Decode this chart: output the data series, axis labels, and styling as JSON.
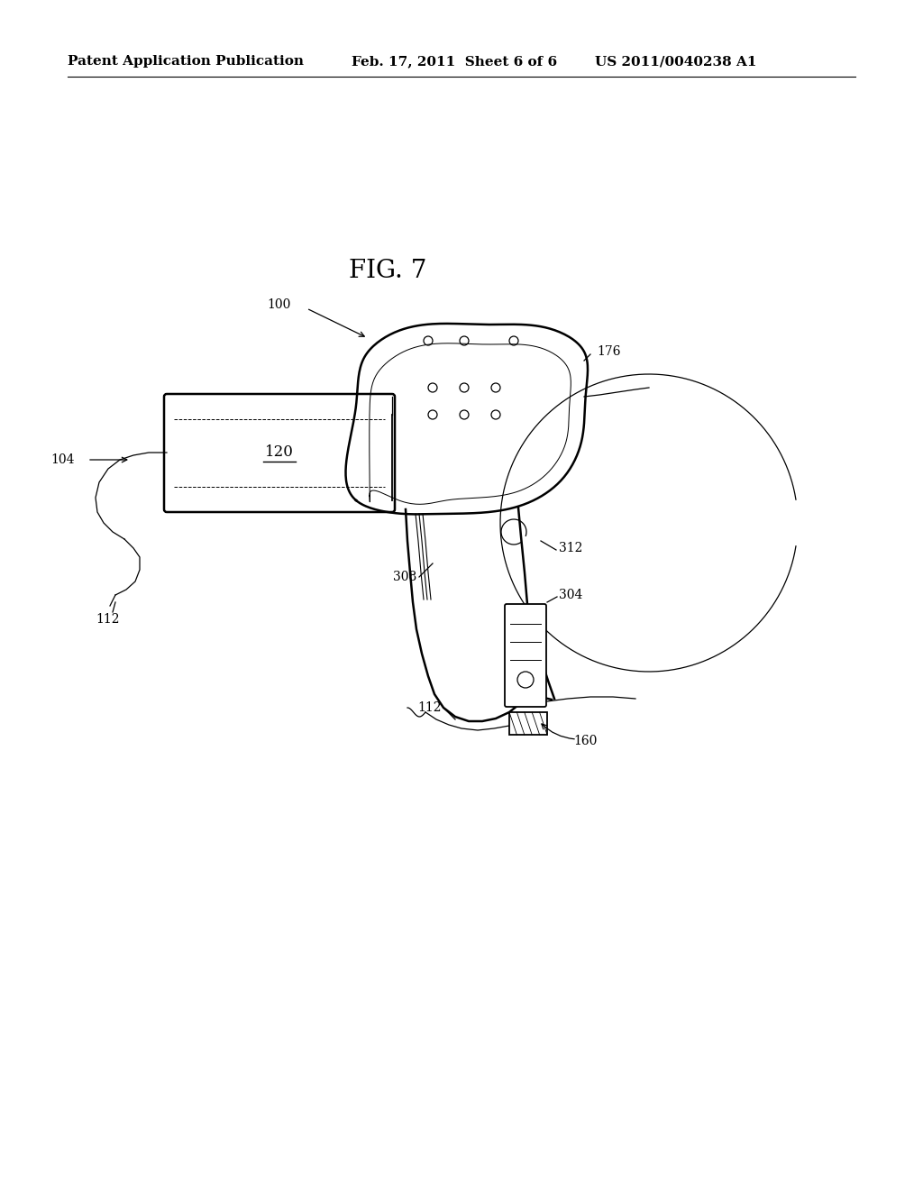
{
  "background_color": "#ffffff",
  "header_left": "Patent Application Publication",
  "header_middle": "Feb. 17, 2011  Sheet 6 of 6",
  "header_right": "US 2011/0040238 A1",
  "figure_label": "FIG. 7",
  "header_fontsize": 11,
  "label_fontsize": 10,
  "fig_label_fontsize": 20
}
